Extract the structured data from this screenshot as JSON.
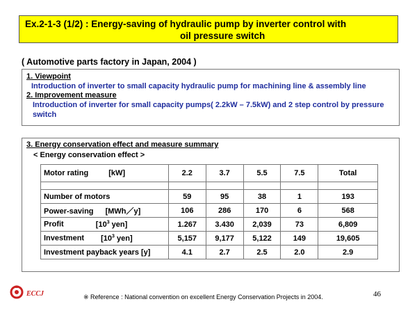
{
  "header": {
    "title_line1": "Ex.2-1-3  (1/2) : Energy-saving of hydraulic pump by inverter control with",
    "title_line2": "oil pressure switch"
  },
  "subtitle": "( Automotive parts factory in Japan, 2004 )",
  "section1": {
    "heading": "1. Viewpoint",
    "text": "Introduction of inverter to small capacity hydraulic pump for machining line & assembly line"
  },
  "section2": {
    "heading": "2. Improvement measure",
    "text": "Introduction of inverter for small capacity pumps( 2.2kW – 7.5kW)  and 2 step control by pressure switch"
  },
  "section3": {
    "heading": "3. Energy conservation effect and measure summary",
    "effect_label": "< Energy conservation effect >"
  },
  "table": {
    "header": {
      "label": "Motor rating",
      "unit": "[kW]",
      "cols": [
        "2.2",
        "3.7",
        "5.5",
        "7.5",
        "Total"
      ]
    },
    "rows": [
      {
        "label": "Number of motors",
        "unit": "",
        "values": [
          "59",
          "95",
          "38",
          "1",
          "193"
        ]
      },
      {
        "label": "Power-saving",
        "unit": "[MWh／y]",
        "values": [
          "106",
          "286",
          "170",
          "6",
          "568"
        ]
      },
      {
        "label": "Profit",
        "unit_prefix": "[10",
        "unit_sup": "3",
        "unit_suffix": " yen]",
        "values": [
          "1.267",
          "3.430",
          "2,039",
          "73",
          "6,809"
        ]
      },
      {
        "label": "Investment",
        "unit_prefix": "[10",
        "unit_sup": "3",
        "unit_suffix": " yen]",
        "values": [
          "5,157",
          "9,177",
          "5,122",
          "149",
          "19,605"
        ]
      },
      {
        "label": "Investment payback years [y]",
        "unit": "",
        "values": [
          "4.1",
          "2.7",
          "2.5",
          "2.0",
          "2.9"
        ]
      }
    ]
  },
  "footnote": "※ Reference : National convention on excellent Energy Conservation Projects in 2004.",
  "page_number": "46",
  "logo": {
    "text": "ECCJ",
    "color": "#cc2222",
    "icon": "eccj-logo-icon"
  },
  "colors": {
    "title_bg": "#ffff00",
    "blue_text": "#1f2d9e"
  }
}
